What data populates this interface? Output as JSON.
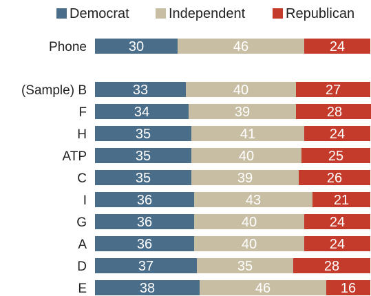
{
  "chart_data": {
    "type": "bar",
    "orientation": "horizontal",
    "stacked": true,
    "legend": {
      "position": "top",
      "entries": [
        "Democrat",
        "Independent",
        "Republican"
      ]
    },
    "categories": [
      "Phone",
      "(Sample) B",
      "F",
      "H",
      "ATP",
      "C",
      "I",
      "G",
      "A",
      "D",
      "E"
    ],
    "series": [
      {
        "name": "Democrat",
        "color": "#4a6e8a",
        "values": [
          30,
          33,
          34,
          35,
          35,
          35,
          36,
          36,
          36,
          37,
          38
        ]
      },
      {
        "name": "Independent",
        "color": "#c8bea3",
        "values": [
          46,
          40,
          39,
          41,
          40,
          39,
          43,
          40,
          40,
          35,
          46
        ]
      },
      {
        "name": "Republican",
        "color": "#c43b2b",
        "values": [
          24,
          27,
          28,
          24,
          25,
          26,
          21,
          24,
          24,
          28,
          16
        ]
      }
    ],
    "xlim": [
      0,
      100
    ],
    "grid": false
  }
}
